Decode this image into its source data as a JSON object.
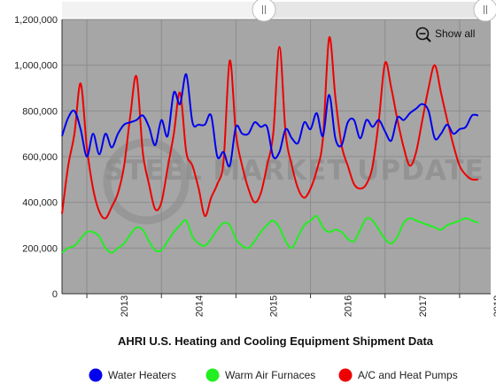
{
  "chart_data": {
    "type": "line",
    "title": "AHRI U.S. Heating and Cooling Equipment Shipment Data",
    "x_tick_labels": [
      "2013",
      "2014",
      "2015",
      "2016",
      "2017",
      "2018"
    ],
    "y_tick_labels": [
      "0",
      "200,000",
      "400,000",
      "600,000",
      "800,000",
      "1,000,000",
      "1,200,000"
    ],
    "ylim": [
      0,
      1200000
    ],
    "x_start": "2012-09",
    "x_end": "2018-06",
    "grid": true,
    "legend_position": "bottom",
    "watermark": "STEEL MARKET UPDATE",
    "zoom_button_label": "Show all",
    "series": [
      {
        "name": "Water Heaters",
        "color": "#0000ee",
        "values": [
          690000,
          770000,
          800000,
          720000,
          600000,
          700000,
          610000,
          700000,
          640000,
          700000,
          740000,
          750000,
          760000,
          780000,
          730000,
          650000,
          760000,
          690000,
          880000,
          830000,
          960000,
          750000,
          740000,
          740000,
          780000,
          600000,
          620000,
          560000,
          730000,
          700000,
          700000,
          750000,
          730000,
          730000,
          600000,
          620000,
          720000,
          680000,
          660000,
          750000,
          720000,
          790000,
          690000,
          870000,
          680000,
          650000,
          750000,
          760000,
          680000,
          760000,
          730000,
          760000,
          710000,
          670000,
          770000,
          760000,
          790000,
          810000,
          830000,
          800000,
          680000,
          700000,
          740000,
          700000,
          720000,
          730000,
          780000,
          780000
        ]
      },
      {
        "name": "Warm Air Furnaces",
        "color": "#22ee22",
        "values": [
          180000,
          200000,
          210000,
          240000,
          270000,
          270000,
          250000,
          200000,
          180000,
          200000,
          220000,
          260000,
          290000,
          280000,
          230000,
          190000,
          190000,
          230000,
          270000,
          300000,
          320000,
          250000,
          220000,
          210000,
          240000,
          280000,
          310000,
          300000,
          240000,
          210000,
          200000,
          230000,
          270000,
          300000,
          320000,
          290000,
          230000,
          200000,
          250000,
          300000,
          320000,
          340000,
          290000,
          270000,
          280000,
          270000,
          240000,
          230000,
          280000,
          330000,
          320000,
          280000,
          240000,
          220000,
          250000,
          310000,
          330000,
          320000,
          310000,
          300000,
          290000,
          280000,
          300000,
          310000,
          320000,
          330000,
          320000,
          310000
        ]
      },
      {
        "name": "A/C and Heat Pumps",
        "color": "#ee0000",
        "values": [
          350000,
          560000,
          700000,
          920000,
          640000,
          460000,
          360000,
          330000,
          380000,
          440000,
          560000,
          780000,
          950000,
          620000,
          480000,
          370000,
          400000,
          550000,
          700000,
          880000,
          620000,
          560000,
          460000,
          340000,
          420000,
          480000,
          580000,
          1020000,
          700000,
          560000,
          460000,
          400000,
          440000,
          560000,
          700000,
          1080000,
          700000,
          560000,
          460000,
          420000,
          460000,
          540000,
          680000,
          1120000,
          860000,
          650000,
          560000,
          480000,
          460000,
          480000,
          560000,
          760000,
          1010000,
          900000,
          760000,
          640000,
          560000,
          620000,
          760000,
          900000,
          1000000,
          880000,
          760000,
          650000,
          560000,
          520000,
          500000,
          500000
        ]
      }
    ]
  }
}
